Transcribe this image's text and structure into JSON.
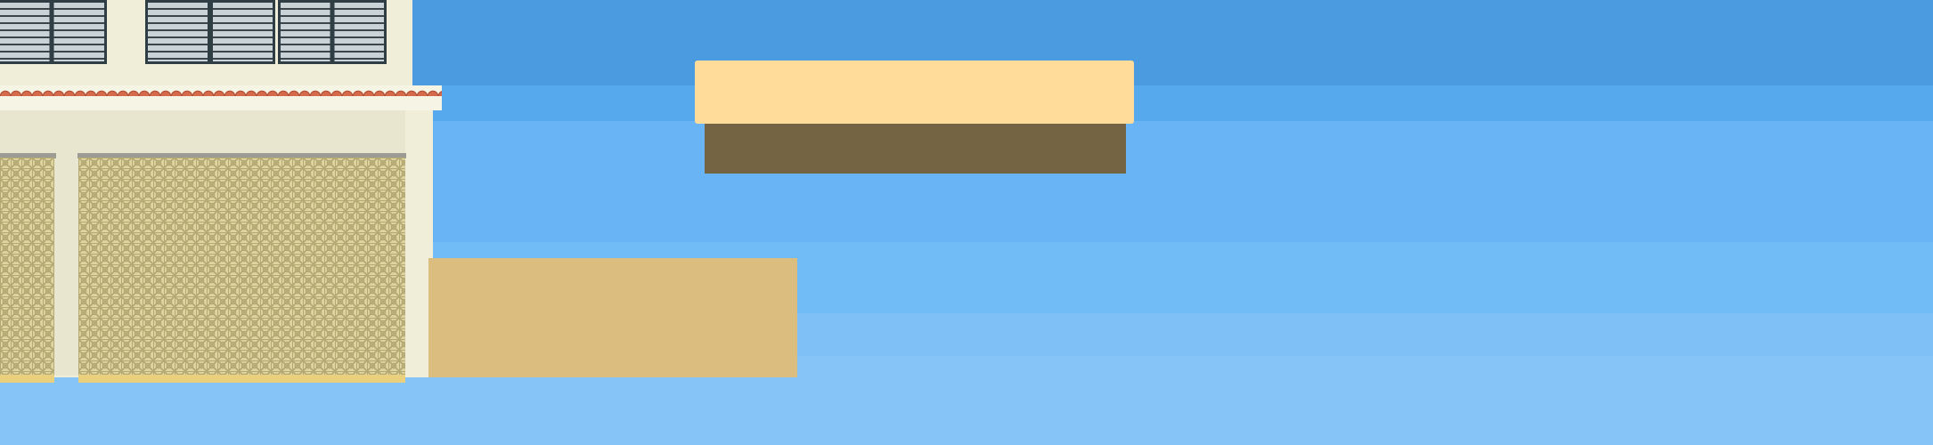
{
  "scene": {
    "kind": "platformer-level-view",
    "colors": {
      "sky_bands": [
        "#4a9be0",
        "#57a9ee",
        "#68b4f4",
        "#71bbf7",
        "#7fc0f7",
        "#86c4f8"
      ],
      "wall_cream": "#f0eed9",
      "wall_shade": "#e8e6cf",
      "roof_tile": "#d46a4c",
      "roof_tile_dark": "#b8503a",
      "cornice": "#f6f4e4",
      "breeze_block_base": "#ded4a0",
      "breeze_block_pattern": "#b4a873",
      "breeze_block_sill": "#9c9c94",
      "breeze_block_foot": "#eacf7d",
      "shutter_frame": "#2f3d44",
      "shutter_slat": "#c9d3d7",
      "shutter_gap": "#3b464c",
      "platform_top": "#ffdc9a",
      "platform_base": "#746444",
      "ground_block": "#dcbd80"
    }
  }
}
